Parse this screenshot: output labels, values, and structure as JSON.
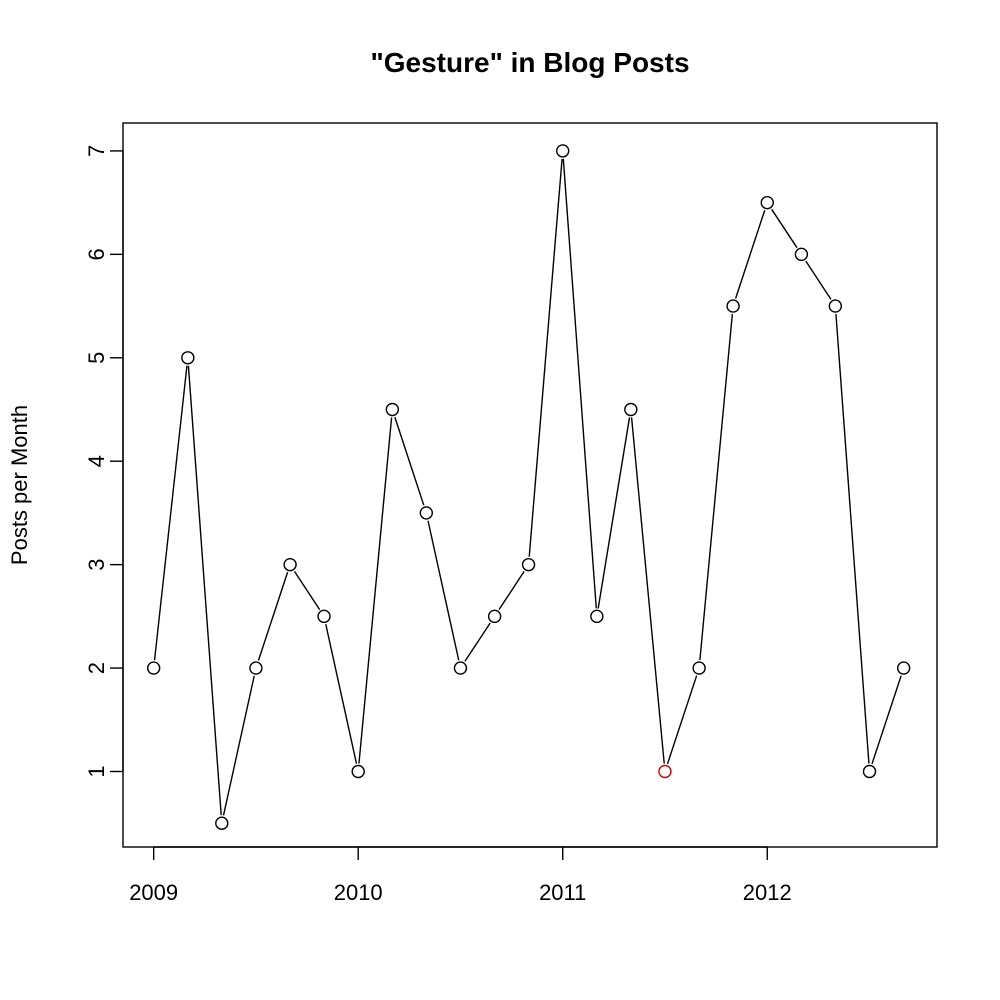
{
  "chart_data": {
    "type": "line",
    "title": "\"Gesture\" in Blog Posts",
    "xlabel": "",
    "ylabel": "Posts per Month",
    "xlim": [
      2008.85,
      2012.83
    ],
    "ylim": [
      0.27,
      7.27
    ],
    "x_ticks": [
      2009,
      2010,
      2011,
      2012
    ],
    "x_tick_labels": [
      "2009",
      "2010",
      "2011",
      "2012"
    ],
    "y_ticks": [
      1,
      2,
      3,
      4,
      5,
      6,
      7
    ],
    "y_tick_labels": [
      "1",
      "2",
      "3",
      "4",
      "5",
      "6",
      "7"
    ],
    "grid": false,
    "legend": "none",
    "series": [
      {
        "x": [
          2009.0,
          2009.167,
          2009.333,
          2009.5,
          2009.667,
          2009.833,
          2010.0,
          2010.167,
          2010.333,
          2010.5,
          2010.667,
          2010.833,
          2011.0,
          2011.167,
          2011.333,
          2011.5,
          2011.667,
          2011.833,
          2012.0,
          2012.167,
          2012.333,
          2012.5,
          2012.667
        ],
        "values": [
          2,
          5,
          0.5,
          2,
          3,
          2.5,
          1,
          4.5,
          3.5,
          2,
          2.5,
          3,
          7,
          2.5,
          4.5,
          1,
          2,
          5.5,
          6.5,
          6,
          5.5,
          1,
          2
        ],
        "colors": [
          "#000000",
          "#000000",
          "#000000",
          "#000000",
          "#000000",
          "#000000",
          "#000000",
          "#000000",
          "#000000",
          "#000000",
          "#000000",
          "#000000",
          "#000000",
          "#000000",
          "#000000",
          "#cc0000",
          "#000000",
          "#000000",
          "#000000",
          "#000000",
          "#000000",
          "#000000",
          "#000000"
        ]
      }
    ]
  }
}
